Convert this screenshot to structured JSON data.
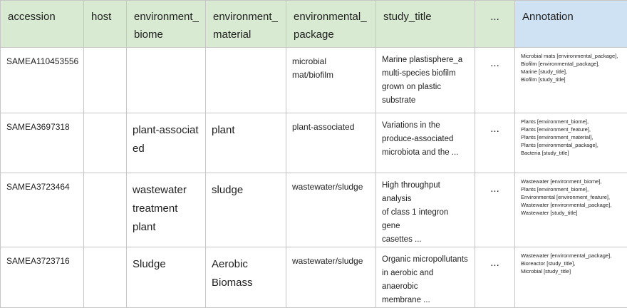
{
  "headers": {
    "accession": "accession",
    "host": "host",
    "environment_biome": "environment_\nbiome",
    "environment_material": "environment_\nmaterial",
    "environmental_package": "environmental_\npackage",
    "study_title": "study_title",
    "ellipsis": "...",
    "annotation": "Annotation"
  },
  "rows": [
    {
      "accession": "SAMEA110453556",
      "host": "",
      "environment_biome": "",
      "environment_material": "",
      "environmental_package": "microbial\nmat/biofilm",
      "study_title": "Marine plastisphere_a\nmulti-species biofilm\ngrown on plastic\nsubstrate",
      "ellipsis": "...",
      "annotation": [
        "Microbial mats [environmental_package],",
        "Biofilm [environmental_package],",
        "Marine [study_title],",
        "Biofilm [study_title]"
      ]
    },
    {
      "accession": "SAMEA3697318",
      "host": "",
      "environment_biome": "plant-associat\ned",
      "environment_material": "plant",
      "environmental_package": "plant-associated",
      "study_title": "Variations in the\nproduce-associated\nmicrobiota and the ...",
      "ellipsis": "...",
      "annotation": [
        "Plants [environment_biome],",
        "Plants [environment_feature],",
        "Plants [environment_material],",
        "Plants [environmental_package],",
        "Bacteria [study_title]"
      ]
    },
    {
      "accession": "SAMEA3723464",
      "host": "",
      "environment_biome": "wastewater\ntreatment\nplant",
      "environment_material": "sludge",
      "environmental_package": "wastewater/sludge",
      "study_title": "High throughput analysis\nof class 1 integron gene\ncasettes ...",
      "ellipsis": "...",
      "annotation": [
        "Wastewater [environment_biome],",
        "Plants [environment_biome],",
        "Environmental [environment_feature],",
        "Wastewater [environmental_package],",
        "Wastewater [study_title]"
      ]
    },
    {
      "accession": "SAMEA3723716",
      "host": "",
      "environment_biome": "Sludge",
      "environment_material": "Aerobic\nBiomass",
      "environmental_package": "wastewater/sludge",
      "study_title": "Organic micropollutants\nin aerobic and anaerobic\nmembrane ...",
      "ellipsis": "...",
      "annotation": [
        "Wastewater [environmental_package],",
        "Bioreactor [study_title],",
        "Microbial [study_title]"
      ]
    }
  ]
}
